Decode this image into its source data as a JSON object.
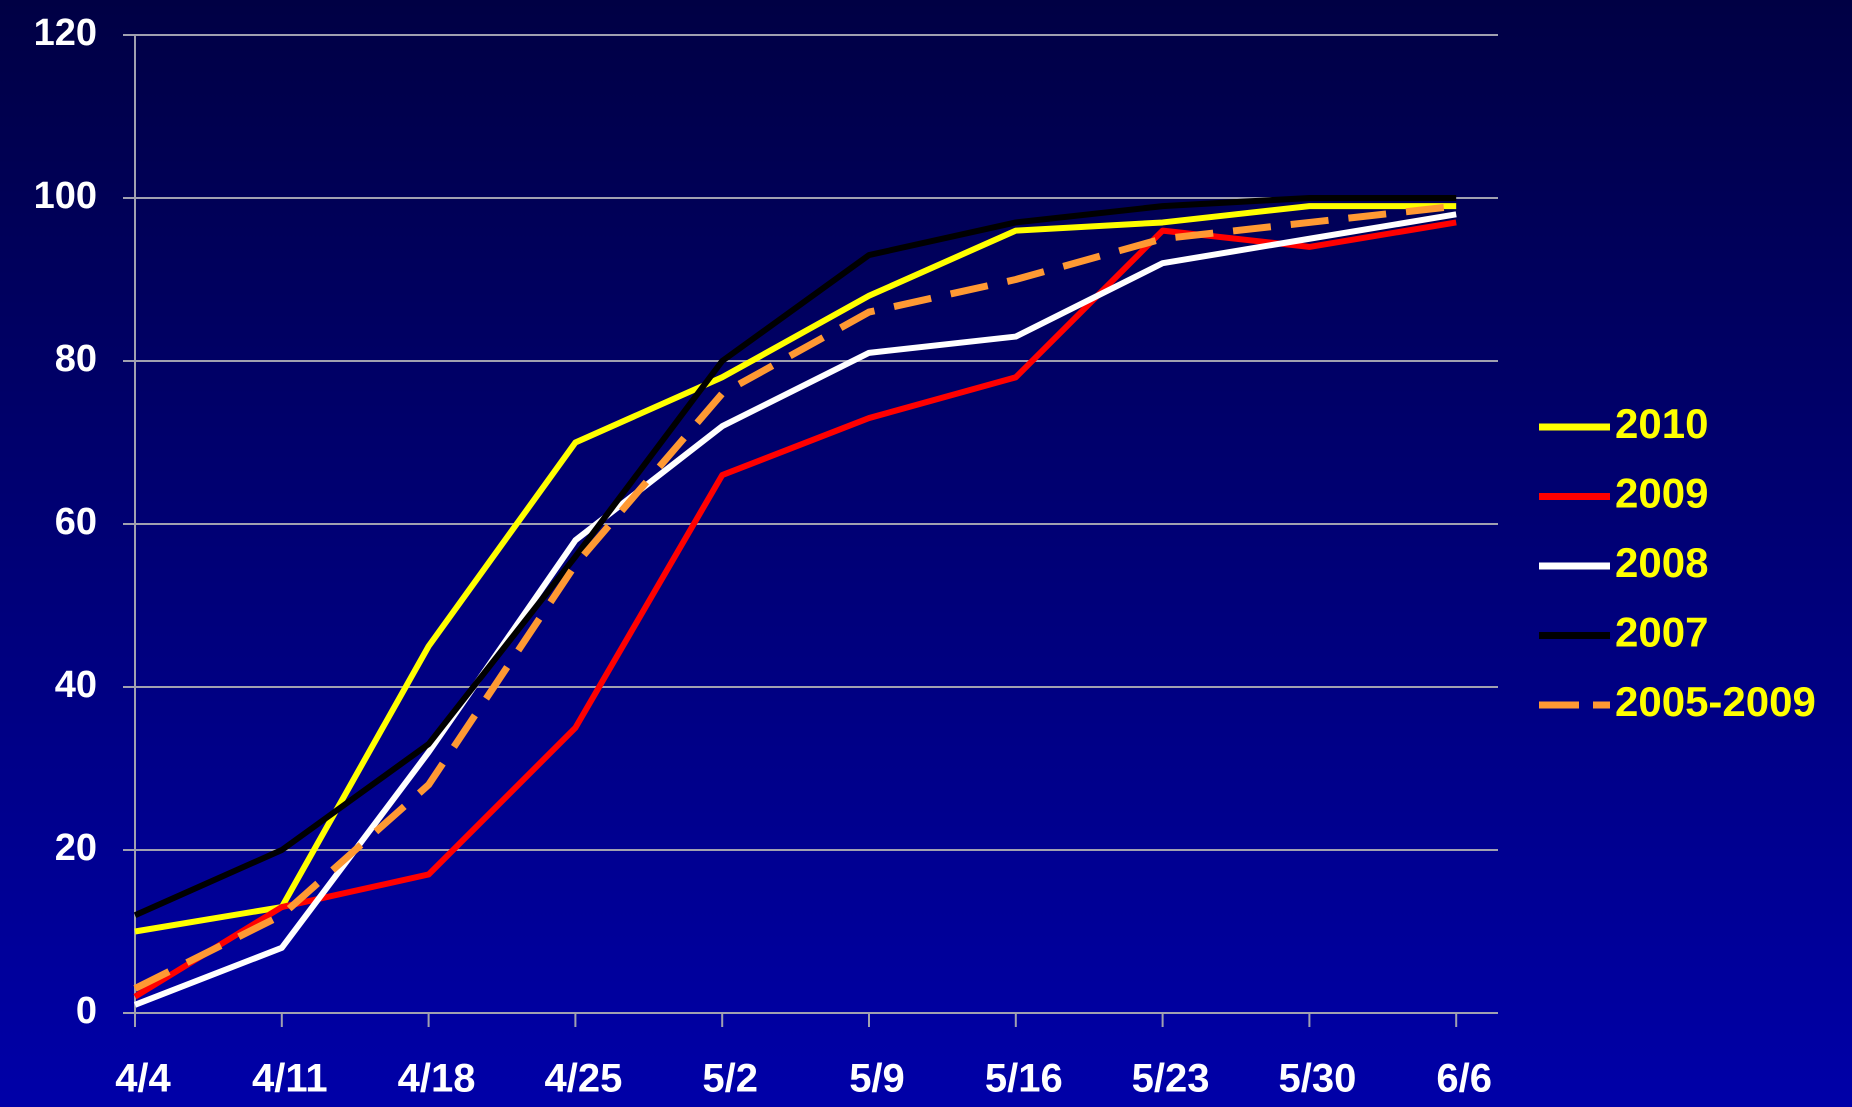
{
  "chart_data": {
    "type": "line",
    "categories": [
      "4/4",
      "4/11",
      "4/18",
      "4/25",
      "5/2",
      "5/9",
      "5/16",
      "5/23",
      "5/30",
      "6/6"
    ],
    "series": [
      {
        "name": "2010",
        "color": "#ffff00",
        "values": [
          10,
          13,
          45,
          70,
          78,
          88,
          96,
          97,
          99,
          99
        ]
      },
      {
        "name": "2009",
        "color": "#ff0000",
        "values": [
          2,
          13,
          17,
          35,
          66,
          73,
          78,
          96,
          94,
          97
        ]
      },
      {
        "name": "2008",
        "color": "#ffffff",
        "values": [
          1,
          8,
          32,
          58,
          72,
          81,
          83,
          92,
          95,
          98
        ]
      },
      {
        "name": "2007",
        "color": "#000000",
        "values": [
          12,
          20,
          33,
          56,
          80,
          93,
          97,
          99,
          100,
          100
        ]
      },
      {
        "name": "2005-2009",
        "color": "#ff9933",
        "dashed": true,
        "values": [
          3,
          12,
          28,
          55,
          76,
          86,
          90,
          95,
          97,
          99
        ]
      }
    ],
    "ylim": [
      0,
      120
    ],
    "yticks": [
      0,
      20,
      40,
      60,
      80,
      100,
      120
    ],
    "grid": true,
    "legend": "right",
    "legend_text_color": "#ffff00"
  }
}
